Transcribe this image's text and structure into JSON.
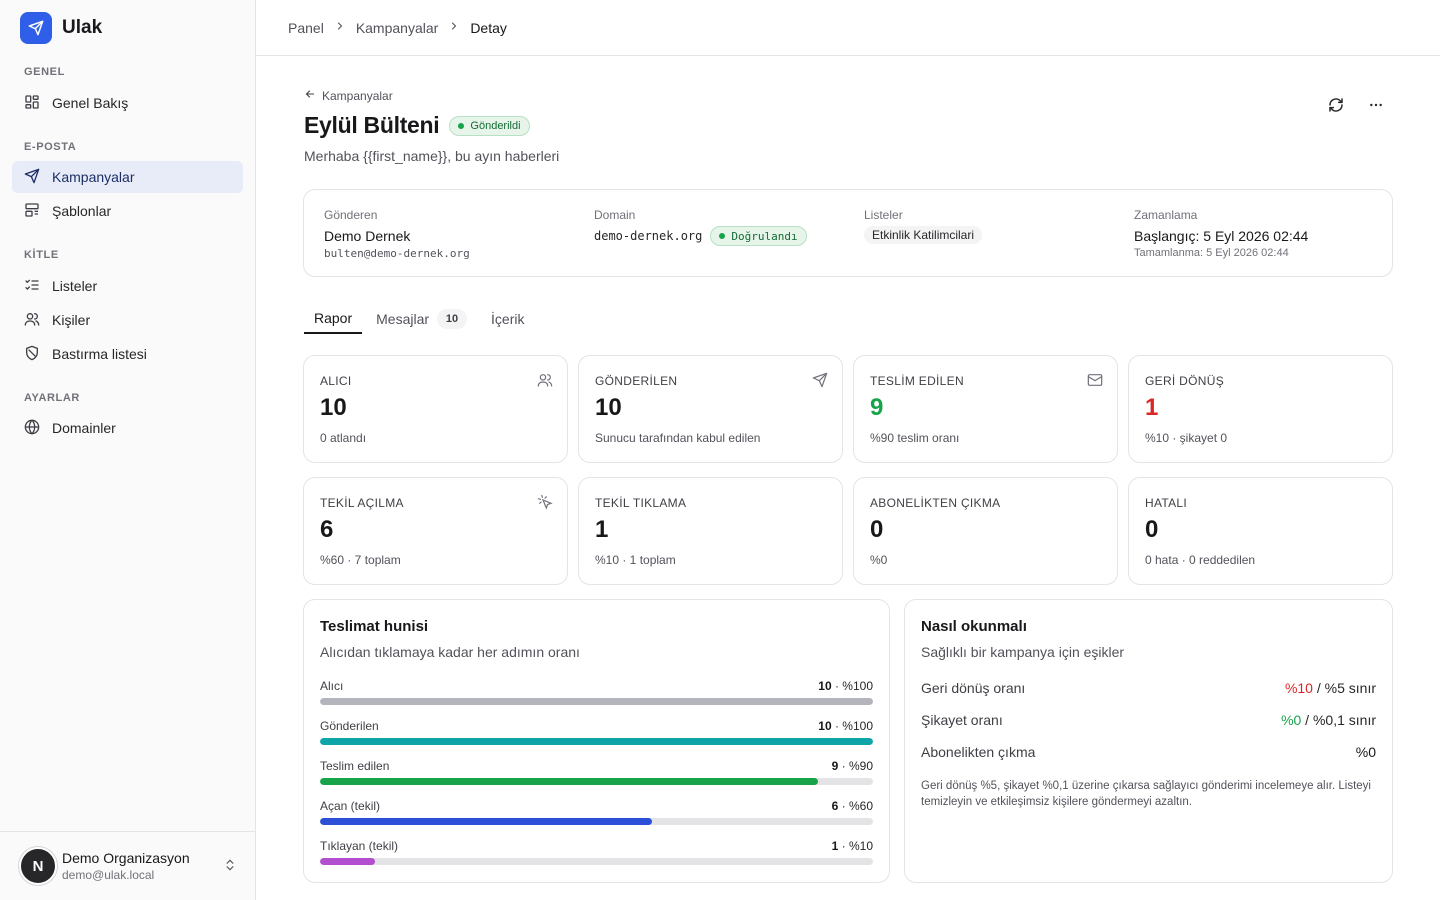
{
  "brand": {
    "name": "Ulak"
  },
  "sidebar": {
    "sections": [
      {
        "title": "GENEL"
      },
      {
        "title": "E-POSTA"
      },
      {
        "title": "KİTLE"
      },
      {
        "title": "AYARLAR"
      }
    ],
    "items": [
      {
        "label": "Genel Bakış",
        "icon": "dashboard-icon"
      },
      {
        "label": "Kampanyalar",
        "icon": "send-icon",
        "active": true
      },
      {
        "label": "Şablonlar",
        "icon": "template-icon"
      },
      {
        "label": "Listeler",
        "icon": "list-check-icon"
      },
      {
        "label": "Kişiler",
        "icon": "users-icon"
      },
      {
        "label": "Bastırma listesi",
        "icon": "shield-icon"
      },
      {
        "label": "Domainler",
        "icon": "globe-icon"
      }
    ],
    "user": {
      "initial": "N",
      "name": "Demo Organizasyon",
      "email": "demo@ulak.local"
    }
  },
  "breadcrumb": [
    "Panel",
    "Kampanyalar",
    "Detay"
  ],
  "header": {
    "back_label": "Kampanyalar",
    "title": "Eylül Bülteni",
    "status": "Gönderildi",
    "subject": "Merhaba {{first_name}}, bu ayın haberleri"
  },
  "info": {
    "sender": {
      "label": "Gönderen",
      "name": "Demo Dernek",
      "email": "bulten@demo-dernek.org"
    },
    "domain": {
      "label": "Domain",
      "value": "demo-dernek.org",
      "status": "Doğrulandı"
    },
    "lists": {
      "label": "Listeler",
      "value": "Etkinlik Katilimcilari"
    },
    "schedule": {
      "label": "Zamanlama",
      "start": "Başlangıç: 5 Eyl 2026 02:44",
      "end": "Tamamlanma: 5 Eyl 2026 02:44"
    }
  },
  "tabs": [
    {
      "label": "Rapor",
      "active": true
    },
    {
      "label": "Mesajlar",
      "count": "10"
    },
    {
      "label": "İçerik"
    }
  ],
  "stats": [
    {
      "label": "ALICI",
      "value": "10",
      "sub": "0 atlandı",
      "icon": "users-icon",
      "color": "#18181b"
    },
    {
      "label": "GÖNDERİLEN",
      "value": "10",
      "sub": "Sunucu tarafından kabul edilen",
      "icon": "send-icon",
      "color": "#18181b"
    },
    {
      "label": "TESLİM EDİLEN",
      "value": "9",
      "sub": "%90 teslim oranı",
      "icon": "mail-check-icon",
      "color": "#16a34a"
    },
    {
      "label": "GERİ DÖNÜŞ",
      "value": "1",
      "sub": "%10 · şikayet 0",
      "icon": "",
      "color": "#dc2626"
    },
    {
      "label": "TEKİL AÇILMA",
      "value": "6",
      "sub": "%60 · 7 toplam",
      "icon": "pointer-click-icon",
      "color": "#18181b"
    },
    {
      "label": "TEKİL TIKLAMA",
      "value": "1",
      "sub": "%10 · 1 toplam",
      "icon": "",
      "color": "#18181b"
    },
    {
      "label": "ABONELİKTEN ÇIKMA",
      "value": "0",
      "sub": "%0",
      "icon": "",
      "color": "#18181b"
    },
    {
      "label": "HATALI",
      "value": "0",
      "sub": "0 hata · 0 reddedilen",
      "icon": "",
      "color": "#18181b"
    }
  ],
  "funnel": {
    "title": "Teslimat hunisi",
    "subtitle": "Alıcıdan tıklamaya kadar her adımın oranı",
    "rows": [
      {
        "label": "Alıcı",
        "count": "10",
        "pct": "%100",
        "fraction": 1.0,
        "color": "#b4b4bd"
      },
      {
        "label": "Gönderilen",
        "count": "10",
        "pct": "%100",
        "fraction": 1.0,
        "color": "#0ea5a8"
      },
      {
        "label": "Teslim edilen",
        "count": "9",
        "pct": "%90",
        "fraction": 0.9,
        "color": "#16a34a"
      },
      {
        "label": "Açan (tekil)",
        "count": "6",
        "pct": "%60",
        "fraction": 0.6,
        "color": "#2b4fd6"
      },
      {
        "label": "Tıklayan (tekil)",
        "count": "1",
        "pct": "%10",
        "fraction": 0.1,
        "color": "#b24fd0"
      }
    ]
  },
  "reading": {
    "title": "Nasıl okunmalı",
    "subtitle": "Sağlıklı bir kampanya için eşikler",
    "rows": [
      {
        "label": "Geri dönüş oranı",
        "value": "%10",
        "limit": " / %5 sınır",
        "status": "bad"
      },
      {
        "label": "Şikayet oranı",
        "value": "%0",
        "limit": " / %0,1 sınır",
        "status": "good"
      },
      {
        "label": "Abonelikten çıkma",
        "value": "%0",
        "limit": "",
        "status": "neutral"
      }
    ],
    "note": "Geri dönüş %5, şikayet %0,1 üzerine çıkarsa sağlayıcı gönderimi incelemeye alır. Listeyi temizleyin ve etkileşimsiz kişilere göndermeyi azaltın."
  }
}
